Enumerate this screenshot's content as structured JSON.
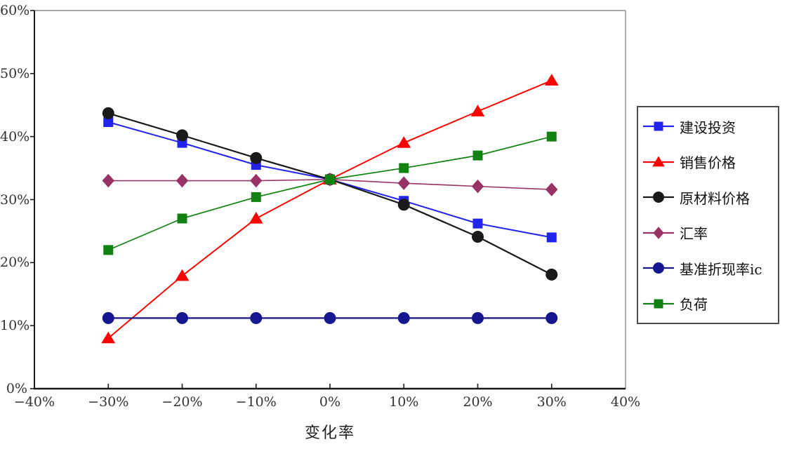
{
  "chart_data": {
    "type": "line",
    "title": "",
    "xlabel": "变化率",
    "ylabel": "",
    "xlim": [
      -40,
      40
    ],
    "ylim": [
      0,
      60
    ],
    "grid": false,
    "legend_position": "right",
    "xticks": [
      {
        "v": -40,
        "label": "−40%"
      },
      {
        "v": -30,
        "label": "−30%"
      },
      {
        "v": -20,
        "label": "−20%"
      },
      {
        "v": -10,
        "label": "−10%"
      },
      {
        "v": 0,
        "label": "0%"
      },
      {
        "v": 10,
        "label": "10%"
      },
      {
        "v": 20,
        "label": "20%"
      },
      {
        "v": 30,
        "label": "30%"
      },
      {
        "v": 40,
        "label": "40%"
      }
    ],
    "yticks": [
      {
        "v": 0,
        "label": "0%"
      },
      {
        "v": 10,
        "label": "10%"
      },
      {
        "v": 20,
        "label": "20%"
      },
      {
        "v": 30,
        "label": "30%"
      },
      {
        "v": 40,
        "label": "40%"
      },
      {
        "v": 50,
        "label": "50%"
      },
      {
        "v": 60,
        "label": "60%"
      }
    ],
    "x": [
      -30,
      -20,
      -10,
      0,
      10,
      20,
      30
    ],
    "series": [
      {
        "name": "建设投资",
        "color": "#2323ee",
        "marker": "square",
        "line_width": 2.0,
        "values": [
          42.3,
          39.0,
          35.5,
          33.2,
          29.8,
          26.2,
          24.0
        ]
      },
      {
        "name": "销售价格",
        "color": "#fe0000",
        "marker": "triangle",
        "line_width": 2.0,
        "values": [
          8.0,
          17.9,
          27.0,
          33.2,
          39.0,
          44.0,
          48.9
        ]
      },
      {
        "name": "原材料价格",
        "color": "#1a1a1a",
        "marker": "circle",
        "line_width": 2.2,
        "values": [
          43.7,
          40.2,
          36.6,
          33.2,
          29.2,
          24.1,
          18.1
        ]
      },
      {
        "name": "汇率",
        "color": "#993366",
        "marker": "diamond",
        "line_width": 1.6,
        "values": [
          33.0,
          33.0,
          33.0,
          33.2,
          32.6,
          32.1,
          31.6
        ]
      },
      {
        "name": "基准折现率ic",
        "color": "#16168e",
        "marker": "circle",
        "line_width": 2.2,
        "values": [
          11.2,
          11.2,
          11.2,
          11.2,
          11.2,
          11.2,
          11.2
        ]
      },
      {
        "name": "负荷",
        "color": "#118211",
        "marker": "square",
        "line_width": 1.7,
        "values": [
          22.0,
          27.0,
          30.4,
          33.2,
          35.0,
          37.0,
          40.0
        ]
      }
    ],
    "axis_colors": {
      "frame_light": "#8c8c8c",
      "axis_dark": "#1a1a1a",
      "tick_label": "#333333"
    }
  }
}
